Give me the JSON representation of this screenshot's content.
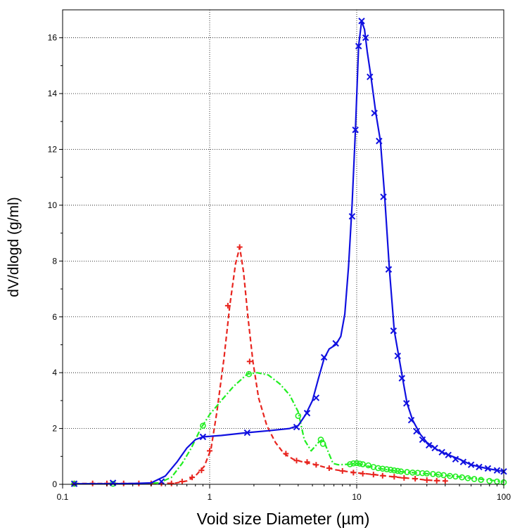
{
  "chart_data": {
    "type": "line",
    "xlabel": "Void size Diameter (µm)",
    "ylabel": "dV/dlogd (g/ml)",
    "x_scale": "log",
    "xlim": [
      0.1,
      100
    ],
    "ylim": [
      0,
      17
    ],
    "x_ticks": [
      0.1,
      1,
      10,
      100
    ],
    "x_tick_labels": [
      "0.1",
      "1",
      "10",
      "100"
    ],
    "y_ticks": [
      0,
      2,
      4,
      6,
      8,
      10,
      12,
      14,
      16
    ],
    "y_tick_labels": [
      "0",
      "2",
      "4",
      "6",
      "8",
      "10",
      "12",
      "14",
      "16"
    ],
    "grid": true,
    "series": [
      {
        "color": "#e8251f",
        "line_style": "dashed",
        "marker": "plus",
        "points": [
          [
            0.12,
            0.03
          ],
          [
            0.2,
            0.03
          ],
          [
            0.3,
            0.03
          ],
          [
            0.45,
            0.03
          ],
          [
            0.58,
            0.04
          ],
          [
            0.7,
            0.12
          ],
          [
            0.8,
            0.3
          ],
          [
            0.92,
            0.65
          ],
          [
            1.02,
            1.25
          ],
          [
            1.12,
            2.6
          ],
          [
            1.25,
            4.5
          ],
          [
            1.37,
            6.4
          ],
          [
            1.5,
            7.9
          ],
          [
            1.6,
            8.5
          ],
          [
            1.7,
            7.6
          ],
          [
            1.82,
            6.0
          ],
          [
            1.97,
            4.4
          ],
          [
            2.15,
            3.1
          ],
          [
            2.45,
            2.1
          ],
          [
            2.8,
            1.5
          ],
          [
            3.2,
            1.1
          ],
          [
            3.7,
            0.9
          ],
          [
            4.3,
            0.8
          ],
          [
            5.0,
            0.73
          ],
          [
            6.0,
            0.62
          ],
          [
            7.2,
            0.52
          ],
          [
            8.5,
            0.46
          ],
          [
            10,
            0.41
          ],
          [
            12,
            0.37
          ],
          [
            14,
            0.33
          ],
          [
            17,
            0.28
          ],
          [
            20,
            0.24
          ],
          [
            25,
            0.2
          ],
          [
            30,
            0.15
          ],
          [
            40,
            0.12
          ]
        ],
        "marker_points": [
          [
            0.12,
            0.03
          ],
          [
            0.16,
            0.03
          ],
          [
            0.2,
            0.03
          ],
          [
            0.26,
            0.03
          ],
          [
            0.33,
            0.03
          ],
          [
            0.4,
            0.03
          ],
          [
            0.47,
            0.03
          ],
          [
            0.55,
            0.03
          ],
          [
            0.65,
            0.1
          ],
          [
            0.76,
            0.25
          ],
          [
            0.88,
            0.5
          ],
          [
            1.0,
            1.2
          ],
          [
            1.33,
            6.4
          ],
          [
            1.6,
            8.5
          ],
          [
            1.87,
            4.4
          ],
          [
            3.3,
            1.1
          ],
          [
            3.9,
            0.85
          ],
          [
            4.6,
            0.8
          ],
          [
            5.3,
            0.7
          ],
          [
            6.5,
            0.58
          ],
          [
            8.0,
            0.48
          ],
          [
            9.5,
            0.42
          ],
          [
            11,
            0.38
          ],
          [
            13,
            0.35
          ],
          [
            15,
            0.31
          ],
          [
            18,
            0.27
          ],
          [
            21,
            0.23
          ],
          [
            25,
            0.2
          ],
          [
            30,
            0.15
          ],
          [
            35,
            0.13
          ],
          [
            40,
            0.12
          ]
        ]
      },
      {
        "color": "#22ee22",
        "line_style": "dash-dot",
        "marker": "circle",
        "points": [
          [
            0.12,
            0.02
          ],
          [
            0.2,
            0.02
          ],
          [
            0.3,
            0.02
          ],
          [
            0.45,
            0.05
          ],
          [
            0.55,
            0.25
          ],
          [
            0.65,
            0.75
          ],
          [
            0.75,
            1.3
          ],
          [
            0.87,
            2.0
          ],
          [
            1.0,
            2.5
          ],
          [
            1.2,
            3.0
          ],
          [
            1.45,
            3.5
          ],
          [
            1.8,
            3.95
          ],
          [
            2.1,
            4.0
          ],
          [
            2.5,
            3.92
          ],
          [
            3.0,
            3.6
          ],
          [
            3.5,
            3.2
          ],
          [
            4.0,
            2.6
          ],
          [
            4.4,
            1.6
          ],
          [
            4.9,
            1.2
          ],
          [
            5.5,
            1.5
          ],
          [
            5.9,
            1.62
          ],
          [
            6.3,
            1.25
          ],
          [
            6.9,
            0.75
          ],
          [
            7.5,
            0.7
          ],
          [
            9,
            0.72
          ],
          [
            10,
            0.75
          ],
          [
            12,
            0.65
          ],
          [
            15,
            0.55
          ],
          [
            20,
            0.45
          ],
          [
            30,
            0.38
          ],
          [
            40,
            0.32
          ],
          [
            50,
            0.27
          ],
          [
            60,
            0.22
          ],
          [
            75,
            0.17
          ],
          [
            90,
            0.12
          ],
          [
            100,
            0.08
          ]
        ],
        "marker_points": [
          [
            0.12,
            0.02
          ],
          [
            0.22,
            0.02
          ],
          [
            0.9,
            2.1
          ],
          [
            1.85,
            3.95
          ],
          [
            4.0,
            2.45
          ],
          [
            5.7,
            1.6
          ],
          [
            5.9,
            1.45
          ],
          [
            9,
            0.72
          ],
          [
            9.5,
            0.75
          ],
          [
            10,
            0.76
          ],
          [
            10.5,
            0.74
          ],
          [
            11,
            0.72
          ],
          [
            12,
            0.68
          ],
          [
            13,
            0.62
          ],
          [
            14,
            0.58
          ],
          [
            15,
            0.56
          ],
          [
            16,
            0.54
          ],
          [
            17,
            0.52
          ],
          [
            18,
            0.5
          ],
          [
            19,
            0.48
          ],
          [
            20,
            0.46
          ],
          [
            22,
            0.44
          ],
          [
            24,
            0.42
          ],
          [
            26,
            0.41
          ],
          [
            28,
            0.4
          ],
          [
            30,
            0.39
          ],
          [
            33,
            0.37
          ],
          [
            36,
            0.35
          ],
          [
            39,
            0.33
          ],
          [
            43,
            0.3
          ],
          [
            47,
            0.28
          ],
          [
            52,
            0.25
          ],
          [
            57,
            0.22
          ],
          [
            63,
            0.19
          ],
          [
            70,
            0.16
          ],
          [
            80,
            0.12
          ],
          [
            90,
            0.1
          ],
          [
            100,
            0.07
          ]
        ]
      },
      {
        "color": "#1010e0",
        "line_style": "solid",
        "marker": "x",
        "points": [
          [
            0.12,
            0.02
          ],
          [
            0.2,
            0.02
          ],
          [
            0.3,
            0.03
          ],
          [
            0.4,
            0.05
          ],
          [
            0.5,
            0.3
          ],
          [
            0.6,
            0.8
          ],
          [
            0.7,
            1.3
          ],
          [
            0.8,
            1.6
          ],
          [
            0.9,
            1.7
          ],
          [
            1.2,
            1.75
          ],
          [
            1.8,
            1.85
          ],
          [
            2.5,
            1.92
          ],
          [
            3.5,
            2.0
          ],
          [
            4.0,
            2.1
          ],
          [
            4.5,
            2.5
          ],
          [
            5.0,
            3.0
          ],
          [
            5.5,
            3.8
          ],
          [
            6.0,
            4.5
          ],
          [
            6.5,
            4.85
          ],
          [
            7.2,
            5.0
          ],
          [
            7.8,
            5.3
          ],
          [
            8.3,
            6.1
          ],
          [
            8.8,
            7.8
          ],
          [
            9.3,
            10.0
          ],
          [
            9.8,
            12.7
          ],
          [
            10.3,
            15.7
          ],
          [
            10.8,
            16.6
          ],
          [
            11.3,
            16.3
          ],
          [
            11.8,
            15.5
          ],
          [
            12.5,
            14.6
          ],
          [
            13.5,
            13.3
          ],
          [
            14.5,
            12.3
          ],
          [
            15.5,
            10.3
          ],
          [
            16.7,
            7.7
          ],
          [
            18,
            5.5
          ],
          [
            19.3,
            4.6
          ],
          [
            20.5,
            3.8
          ],
          [
            22,
            2.9
          ],
          [
            24,
            2.3
          ],
          [
            27,
            1.8
          ],
          [
            30,
            1.5
          ],
          [
            35,
            1.25
          ],
          [
            40,
            1.1
          ],
          [
            50,
            0.9
          ],
          [
            60,
            0.7
          ],
          [
            75,
            0.58
          ],
          [
            90,
            0.5
          ],
          [
            100,
            0.46
          ]
        ],
        "marker_points": [
          [
            0.12,
            0.02
          ],
          [
            0.22,
            0.05
          ],
          [
            0.47,
            0.1
          ],
          [
            0.9,
            1.7
          ],
          [
            1.8,
            1.85
          ],
          [
            3.9,
            2.05
          ],
          [
            4.6,
            2.55
          ],
          [
            5.3,
            3.1
          ],
          [
            6.0,
            4.55
          ],
          [
            7.2,
            5.05
          ],
          [
            9.3,
            9.6
          ],
          [
            9.8,
            12.7
          ],
          [
            10.3,
            15.7
          ],
          [
            10.8,
            16.6
          ],
          [
            11.5,
            16.0
          ],
          [
            12.3,
            14.6
          ],
          [
            13.2,
            13.3
          ],
          [
            14.2,
            12.3
          ],
          [
            15.2,
            10.3
          ],
          [
            16.5,
            7.7
          ],
          [
            17.8,
            5.5
          ],
          [
            19.0,
            4.6
          ],
          [
            20.3,
            3.8
          ],
          [
            21.8,
            2.9
          ],
          [
            23.5,
            2.3
          ],
          [
            25.5,
            1.9
          ],
          [
            28,
            1.6
          ],
          [
            31,
            1.4
          ],
          [
            34,
            1.3
          ],
          [
            38,
            1.15
          ],
          [
            42,
            1.05
          ],
          [
            47,
            0.9
          ],
          [
            53,
            0.8
          ],
          [
            60,
            0.7
          ],
          [
            68,
            0.62
          ],
          [
            78,
            0.57
          ],
          [
            90,
            0.5
          ],
          [
            100,
            0.46
          ]
        ]
      }
    ]
  }
}
